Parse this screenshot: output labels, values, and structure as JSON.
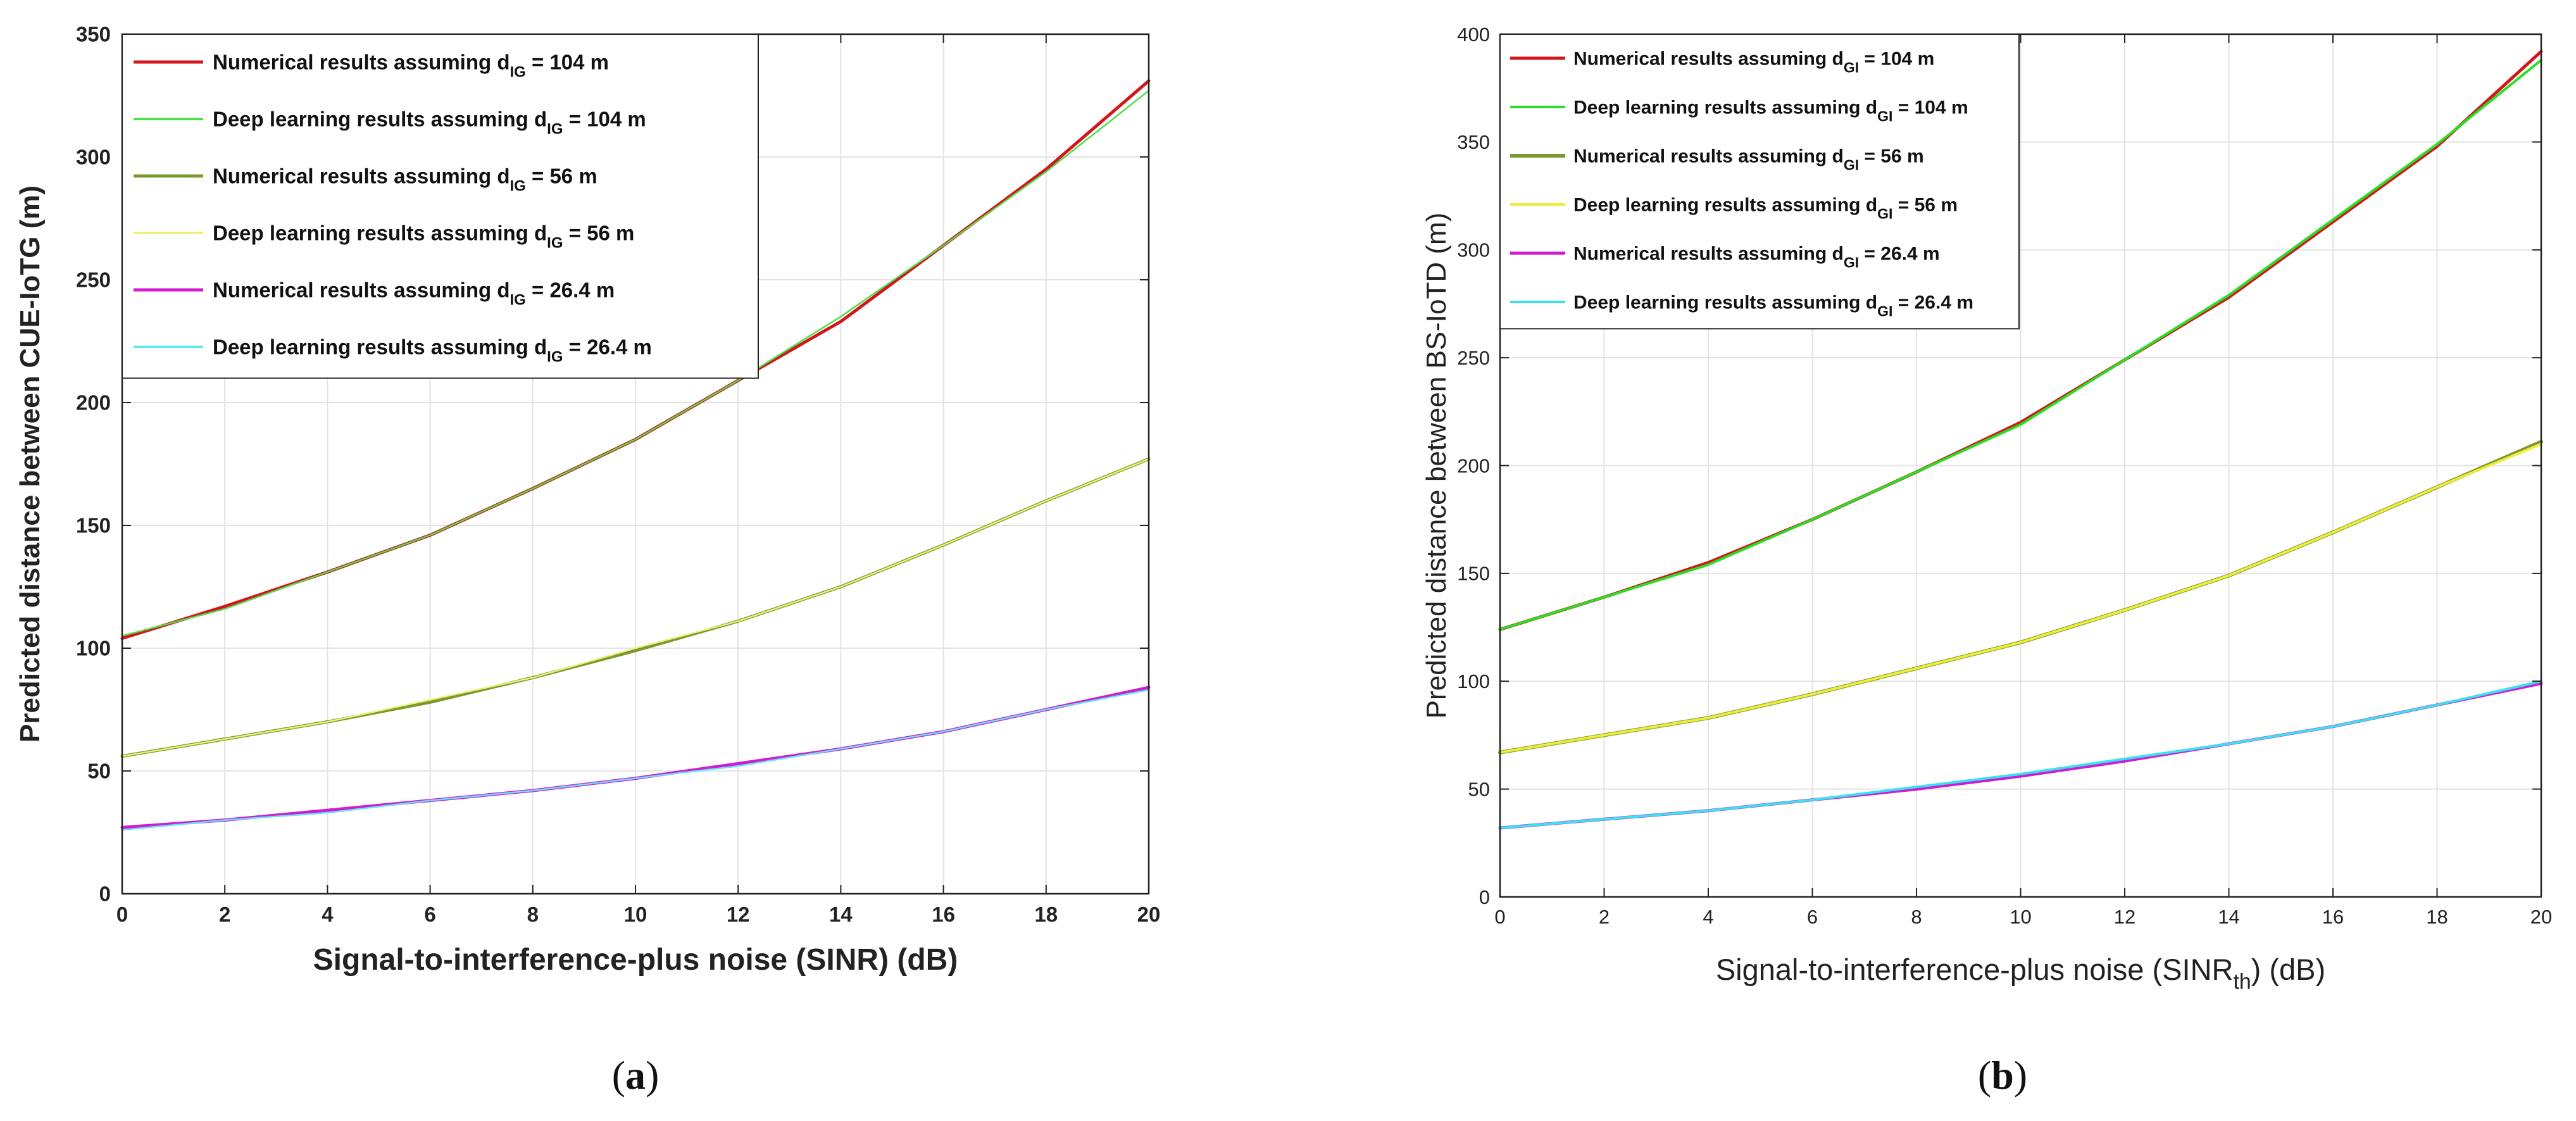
{
  "chart_data": [
    {
      "type": "line",
      "panel_label": "(a)",
      "panel_letter": "a",
      "xlabel": "Signal-to-interference-plus noise (SINR) (dB)",
      "ylabel": "Predicted distance between CUE-IoTG (m)",
      "xlim": [
        0,
        20
      ],
      "ylim": [
        0,
        350
      ],
      "xticks": [
        0,
        2,
        4,
        6,
        8,
        10,
        12,
        14,
        16,
        18,
        20
      ],
      "yticks": [
        0,
        50,
        100,
        150,
        200,
        250,
        300,
        350
      ],
      "grid": true,
      "legend_position": "top-left",
      "x": [
        0,
        2,
        4,
        6,
        8,
        10,
        12,
        14,
        16,
        18,
        20
      ],
      "series": [
        {
          "name": "Numerical results assuming d",
          "sub": "IG",
          "tail": " = 104 m",
          "color": "#d4161b",
          "width": 5,
          "values": [
            104,
            117,
            131,
            146,
            165,
            185,
            209,
            233,
            264,
            295,
            331
          ]
        },
        {
          "name": "Deep learning results assuming d",
          "sub": "IG",
          "tail": " = 104 m",
          "color": "#4ce04c",
          "width": 2.5,
          "values": [
            105,
            116,
            131,
            146,
            165,
            185,
            209,
            235,
            264,
            294,
            327
          ]
        },
        {
          "name": "Numerical results assuming d",
          "sub": "IG",
          "tail": " = 56 m",
          "color": "#7a9a2e",
          "width": 5,
          "values": [
            56,
            63,
            70,
            78,
            88,
            99,
            111,
            125,
            142,
            160,
            177
          ]
        },
        {
          "name": "Deep learning results assuming d",
          "sub": "IG",
          "tail": " = 56 m",
          "color": "#eef07a",
          "width": 2.5,
          "values": [
            56,
            63,
            70,
            79,
            88,
            100,
            111,
            125,
            142,
            160,
            177
          ]
        },
        {
          "name": "Numerical results assuming d",
          "sub": "IG",
          "tail": " = 26.4 m",
          "color": "#d21ad2",
          "width": 5,
          "values": [
            27,
            30,
            34,
            38,
            42,
            47,
            53,
            59,
            66,
            75,
            84
          ]
        },
        {
          "name": "Deep learning results assuming d",
          "sub": "IG",
          "tail": " = 26.4 m",
          "color": "#62e6f0",
          "width": 2.5,
          "values": [
            26,
            30,
            33,
            38,
            42,
            47,
            52,
            59,
            66,
            75,
            83
          ]
        }
      ]
    },
    {
      "type": "line",
      "panel_label": "(b)",
      "panel_letter": "b",
      "xlabel": "Signal-to-interference-plus noise (SINR",
      "xlabel_sub": "th",
      "xlabel_tail": ") (dB)",
      "ylabel": "Predicted distance between BS-IoTD (m)",
      "xlim": [
        0,
        20
      ],
      "ylim": [
        0,
        400
      ],
      "xticks": [
        0,
        2,
        4,
        6,
        8,
        10,
        12,
        14,
        16,
        18,
        20
      ],
      "yticks": [
        0,
        50,
        100,
        150,
        200,
        250,
        300,
        350,
        400
      ],
      "grid": true,
      "legend_position": "top-left",
      "x": [
        0,
        2,
        4,
        6,
        8,
        10,
        12,
        14,
        16,
        18,
        20
      ],
      "series": [
        {
          "name": "Numerical results assuming d",
          "sub": "GI",
          "tail": " = 104 m",
          "color": "#d4161b",
          "width": 5,
          "values": [
            124,
            139,
            155,
            175,
            197,
            220,
            249,
            278,
            313,
            348,
            392
          ]
        },
        {
          "name": "Deep learning results assuming d",
          "sub": "GI",
          "tail": " = 104 m",
          "color": "#26e026",
          "width": 4,
          "values": [
            124,
            139,
            154,
            175,
            197,
            219,
            249,
            279,
            314,
            349,
            388
          ]
        },
        {
          "name": "Numerical results assuming d",
          "sub": "GI",
          "tail": " = 56 m",
          "color": "#7a9a2e",
          "width": 6,
          "values": [
            67,
            75,
            83,
            94,
            106,
            118,
            133,
            149,
            169,
            190,
            211
          ]
        },
        {
          "name": "Deep learning results assuming d",
          "sub": "GI",
          "tail": " = 56 m",
          "color": "#f0ec3a",
          "width": 4,
          "values": [
            67,
            75,
            83,
            94,
            106,
            118,
            133,
            149,
            169,
            190,
            210
          ]
        },
        {
          "name": "Numerical results assuming d",
          "sub": "GI",
          "tail": " = 26.4 m",
          "color": "#d21ad2",
          "width": 5,
          "values": [
            32,
            36,
            40,
            45,
            50,
            56,
            63,
            71,
            79,
            89,
            99
          ]
        },
        {
          "name": "Deep learning results assuming d",
          "sub": "GI",
          "tail": " = 26.4 m",
          "color": "#39e2ee",
          "width": 4,
          "values": [
            32,
            36,
            40,
            45,
            51,
            57,
            64,
            71,
            79,
            89,
            100
          ]
        }
      ]
    }
  ]
}
